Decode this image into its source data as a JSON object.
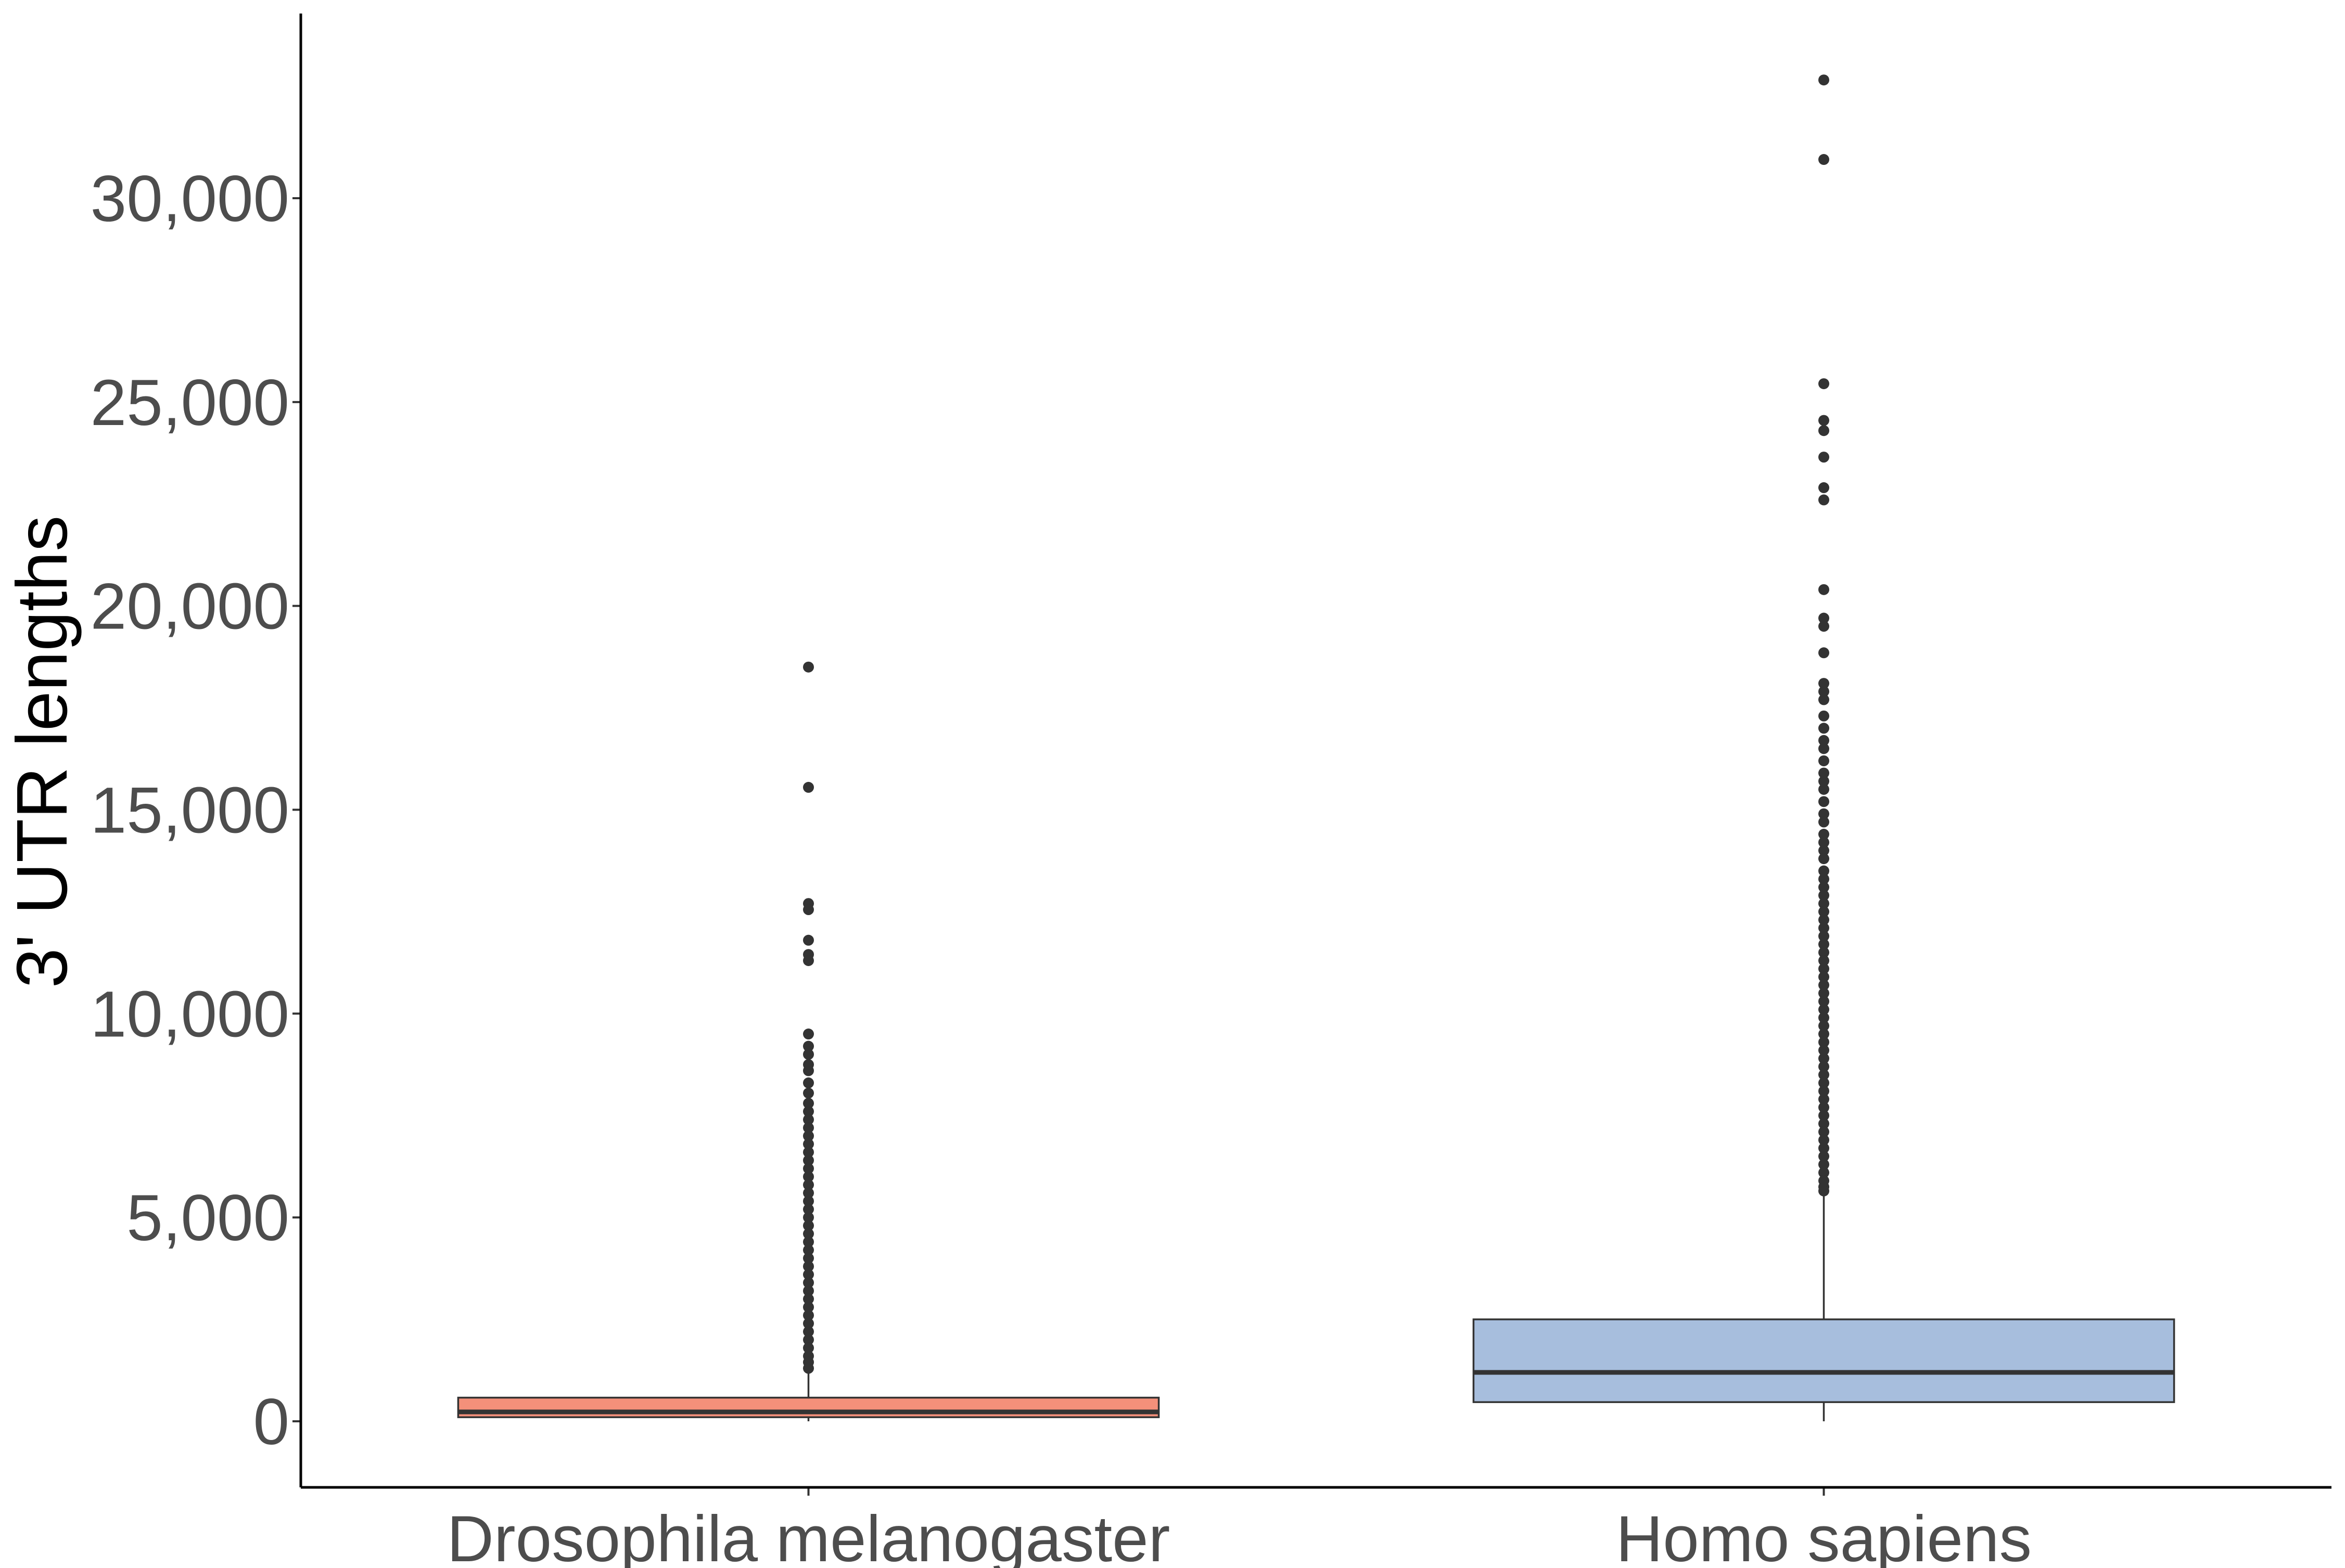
{
  "chart_data": {
    "type": "boxplot",
    "title": "",
    "xlabel": "",
    "ylabel": "3' UTR lengths",
    "ylim": [
      -1600,
      34400
    ],
    "yticks": [
      0,
      5000,
      10000,
      15000,
      20000,
      25000,
      30000
    ],
    "ytick_labels": [
      "0",
      "5,000",
      "10,000",
      "15,000",
      "20,000",
      "25,000",
      "30,000"
    ],
    "grid": false,
    "legend": "none",
    "categories": [
      "Drosophila melanogaster",
      "Homo sapiens"
    ],
    "series": [
      {
        "category": "Drosophila melanogaster",
        "color": "#f4907a",
        "whisker_low": 0,
        "q1": 100,
        "median": 230,
        "q3": 580,
        "whisker_high": 1200,
        "outliers": [
          18500,
          15550,
          12700,
          12550,
          11800,
          11450,
          11300,
          9500,
          9200,
          9000,
          8750,
          8600,
          8300,
          8050,
          7800,
          7600,
          7400,
          7200,
          7000,
          6800,
          6600,
          6400,
          6200,
          6000,
          5800,
          5600,
          5400,
          5200,
          5000,
          4800,
          4600,
          4400,
          4200,
          4000,
          3800,
          3600,
          3400,
          3200,
          3000,
          2800,
          2600,
          2400,
          2200,
          2000,
          1800,
          1600,
          1450,
          1300
        ]
      },
      {
        "category": "Homo sapiens",
        "color": "#a7bedd",
        "whisker_low": 0,
        "q1": 470,
        "median": 1200,
        "q3": 2500,
        "whisker_high": 5550,
        "outliers": [
          32900,
          30950,
          25450,
          24550,
          24300,
          23650,
          22900,
          22600,
          20400,
          19700,
          19500,
          18850,
          18100,
          17900,
          17700,
          17300,
          17000,
          16700,
          16500,
          16200,
          15900,
          15700,
          15500,
          15200,
          14900,
          14700,
          14400,
          14200,
          14000,
          13800,
          13500,
          13300,
          13100,
          12900,
          12700,
          12500,
          12300,
          12100,
          11900,
          11700,
          11500,
          11300,
          11100,
          10900,
          10700,
          10500,
          10300,
          10100,
          9900,
          9700,
          9500,
          9300,
          9100,
          8900,
          8700,
          8500,
          8300,
          8100,
          7900,
          7700,
          7500,
          7300,
          7100,
          6900,
          6700,
          6500,
          6300,
          6100,
          5900,
          5750,
          5650
        ]
      }
    ]
  }
}
